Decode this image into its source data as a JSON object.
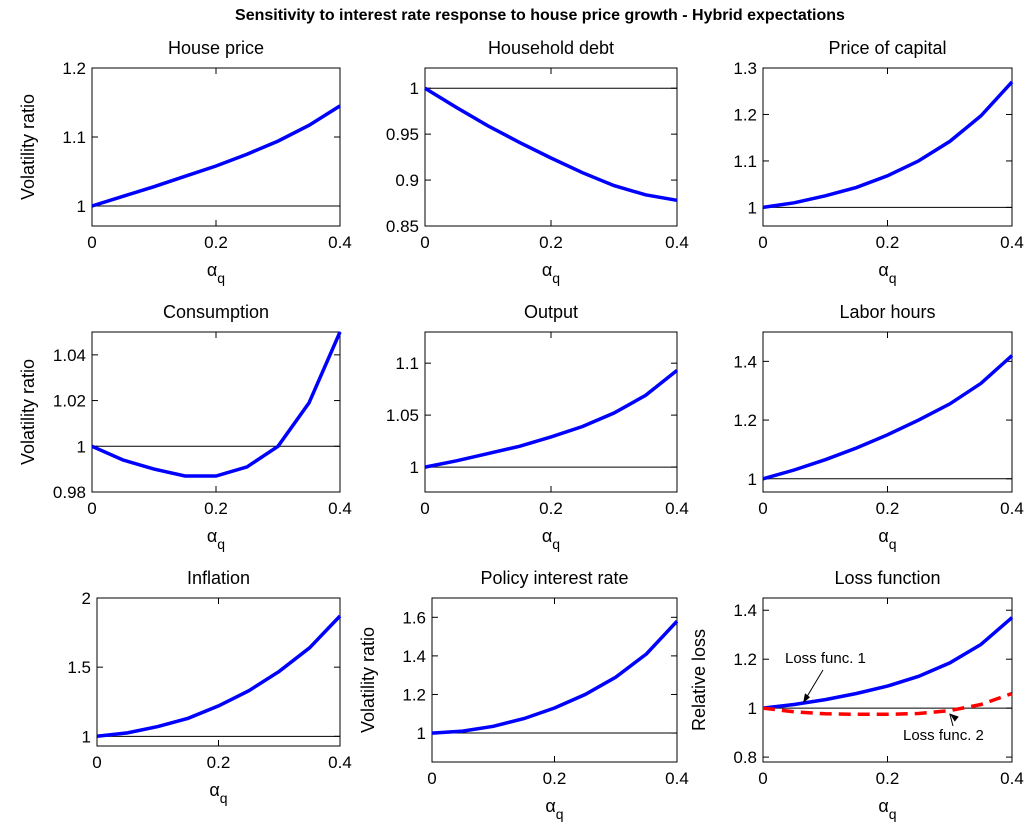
{
  "title": "Sensitivity to interest rate response to house price growth - Hybrid expectations",
  "chart_data": [
    {
      "type": "line",
      "title": "House price",
      "ylabel": "Volatility ratio",
      "xlabel": {
        "symbol": "α",
        "subscript": "q"
      },
      "x": [
        0,
        0.05,
        0.1,
        0.15,
        0.2,
        0.25,
        0.3,
        0.35,
        0.4
      ],
      "values": [
        1,
        1.014,
        1.028,
        1.043,
        1.058,
        1.075,
        1.094,
        1.117,
        1.145
      ],
      "color": "#0000ff",
      "hline": 1,
      "xlim": [
        0,
        0.4
      ],
      "xticks": [
        0,
        0.2,
        0.4
      ],
      "ylim": [
        0.971,
        1.2
      ],
      "yticks": [
        1,
        1.1,
        1.2
      ]
    },
    {
      "type": "line",
      "title": "Household debt",
      "xlabel": {
        "symbol": "α",
        "subscript": "q"
      },
      "x": [
        0,
        0.05,
        0.1,
        0.15,
        0.2,
        0.25,
        0.3,
        0.35,
        0.4
      ],
      "values": [
        1,
        0.979,
        0.959,
        0.941,
        0.924,
        0.908,
        0.894,
        0.884,
        0.878
      ],
      "color": "#0000ff",
      "hline": 1,
      "xlim": [
        0,
        0.4
      ],
      "xticks": [
        0,
        0.2,
        0.4
      ],
      "ylim": [
        0.85,
        1.022
      ],
      "yticks": [
        0.85,
        0.9,
        0.95,
        1
      ]
    },
    {
      "type": "line",
      "title": "Price of capital",
      "xlabel": {
        "symbol": "α",
        "subscript": "q"
      },
      "x": [
        0,
        0.05,
        0.1,
        0.15,
        0.2,
        0.25,
        0.3,
        0.35,
        0.4
      ],
      "values": [
        1,
        1.01,
        1.025,
        1.043,
        1.068,
        1.1,
        1.142,
        1.197,
        1.27
      ],
      "color": "#0000ff",
      "hline": 1,
      "xlim": [
        0,
        0.4
      ],
      "xticks": [
        0,
        0.2,
        0.4
      ],
      "ylim": [
        0.96,
        1.3
      ],
      "yticks": [
        1,
        1.1,
        1.2,
        1.3
      ]
    },
    {
      "type": "line",
      "title": "Consumption",
      "ylabel": "Volatility ratio",
      "xlabel": {
        "symbol": "α",
        "subscript": "q"
      },
      "x": [
        0,
        0.05,
        0.1,
        0.15,
        0.2,
        0.25,
        0.3,
        0.35,
        0.4
      ],
      "values": [
        1,
        0.994,
        0.99,
        0.987,
        0.987,
        0.991,
        1.0,
        1.019,
        1.05
      ],
      "color": "#0000ff",
      "hline": 1,
      "xlim": [
        0,
        0.4
      ],
      "xticks": [
        0,
        0.2,
        0.4
      ],
      "ylim": [
        0.98,
        1.05
      ],
      "yticks": [
        0.98,
        1,
        1.02,
        1.04
      ]
    },
    {
      "type": "line",
      "title": "Output",
      "xlabel": {
        "symbol": "α",
        "subscript": "q"
      },
      "x": [
        0,
        0.05,
        0.1,
        0.15,
        0.2,
        0.25,
        0.3,
        0.35,
        0.4
      ],
      "values": [
        1,
        1.006,
        1.013,
        1.02,
        1.029,
        1.039,
        1.052,
        1.069,
        1.093
      ],
      "color": "#0000ff",
      "hline": 1,
      "xlim": [
        0,
        0.4
      ],
      "xticks": [
        0,
        0.2,
        0.4
      ],
      "ylim": [
        0.976,
        1.13
      ],
      "yticks": [
        1,
        1.05,
        1.1
      ]
    },
    {
      "type": "line",
      "title": "Labor hours",
      "xlabel": {
        "symbol": "α",
        "subscript": "q"
      },
      "x": [
        0,
        0.05,
        0.1,
        0.15,
        0.2,
        0.25,
        0.3,
        0.35,
        0.4
      ],
      "values": [
        1,
        1.03,
        1.065,
        1.105,
        1.15,
        1.2,
        1.255,
        1.325,
        1.42
      ],
      "color": "#0000ff",
      "hline": 1,
      "xlim": [
        0,
        0.4
      ],
      "xticks": [
        0,
        0.2,
        0.4
      ],
      "ylim": [
        0.955,
        1.5
      ],
      "yticks": [
        1,
        1.2,
        1.4
      ]
    },
    {
      "type": "line",
      "title": "Inflation",
      "xlabel": {
        "symbol": "α",
        "subscript": "q"
      },
      "x": [
        0,
        0.05,
        0.1,
        0.15,
        0.2,
        0.25,
        0.3,
        0.35,
        0.4
      ],
      "values": [
        1,
        1.025,
        1.07,
        1.13,
        1.22,
        1.33,
        1.47,
        1.64,
        1.87
      ],
      "color": "#0000ff",
      "hline": 1,
      "xlim": [
        0,
        0.4
      ],
      "xticks": [
        0,
        0.2,
        0.4
      ],
      "ylim": [
        0.93,
        2
      ],
      "yticks": [
        1,
        1.5,
        2
      ]
    },
    {
      "type": "line",
      "title": "Policy interest rate",
      "ylabel": "Volatility ratio",
      "xlabel": {
        "symbol": "α",
        "subscript": "q"
      },
      "x": [
        0,
        0.05,
        0.1,
        0.15,
        0.2,
        0.25,
        0.3,
        0.35,
        0.4
      ],
      "values": [
        1,
        1.01,
        1.035,
        1.075,
        1.13,
        1.2,
        1.29,
        1.41,
        1.58
      ],
      "color": "#0000ff",
      "hline": 1,
      "xlim": [
        0,
        0.4
      ],
      "xticks": [
        0,
        0.2,
        0.4
      ],
      "ylim": [
        0.85,
        1.7
      ],
      "yticks": [
        1,
        1.2,
        1.4,
        1.6
      ]
    },
    {
      "type": "line",
      "title": "Loss function",
      "ylabel": "Relative loss",
      "xlabel": {
        "symbol": "α",
        "subscript": "q"
      },
      "x": [
        0,
        0.05,
        0.1,
        0.15,
        0.2,
        0.25,
        0.3,
        0.35,
        0.4
      ],
      "series": [
        {
          "name": "Loss func. 1",
          "color": "#0000ff",
          "linestyle": "solid",
          "values": [
            1,
            1.015,
            1.035,
            1.06,
            1.09,
            1.13,
            1.185,
            1.26,
            1.37
          ]
        },
        {
          "name": "Loss func. 2",
          "color": "#ff0000",
          "linestyle": "dashed",
          "values": [
            1,
            0.985,
            0.977,
            0.975,
            0.975,
            0.978,
            0.99,
            1.015,
            1.06
          ]
        }
      ],
      "hline": 1,
      "xlim": [
        0,
        0.4
      ],
      "xticks": [
        0,
        0.2,
        0.4
      ],
      "ylim": [
        0.78,
        1.45
      ],
      "yticks": [
        0.8,
        1,
        1.2,
        1.4
      ]
    }
  ]
}
